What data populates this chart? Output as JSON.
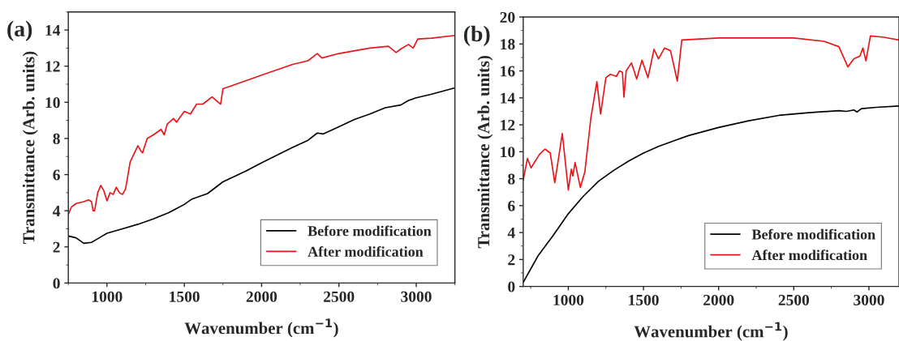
{
  "chart_data": [
    {
      "type": "line",
      "title": "(a)",
      "xlabel": "Wavenumber (cm$^{−1}$)",
      "ylabel": "Transmittance (Arb. units)",
      "xlim": [
        750,
        3250
      ],
      "ylim": [
        0,
        15
      ],
      "xticks": [
        1000,
        1500,
        2000,
        2500,
        3000
      ],
      "yticks": [
        0,
        2,
        4,
        6,
        8,
        10,
        12,
        14
      ],
      "legend": "bottom right",
      "grid": false,
      "series": [
        {
          "name": "Before modification",
          "color": "#000000",
          "x": [
            750,
            800,
            850,
            900,
            950,
            1000,
            1100,
            1200,
            1300,
            1400,
            1500,
            1550,
            1650,
            1750,
            1900,
            2000,
            2200,
            2300,
            2360,
            2400,
            2500,
            2600,
            2700,
            2800,
            2900,
            2950,
            3000,
            3100,
            3250
          ],
          "values": [
            2.6,
            2.5,
            2.2,
            2.25,
            2.5,
            2.75,
            3.0,
            3.25,
            3.55,
            3.9,
            4.35,
            4.65,
            4.95,
            5.6,
            6.2,
            6.65,
            7.5,
            7.9,
            8.3,
            8.25,
            8.65,
            9.05,
            9.35,
            9.7,
            9.85,
            10.1,
            10.25,
            10.45,
            10.8
          ]
        },
        {
          "name": "After modification",
          "color": "#e8161b",
          "x": [
            750,
            770,
            800,
            850,
            880,
            900,
            910,
            920,
            940,
            960,
            980,
            1000,
            1020,
            1040,
            1060,
            1080,
            1100,
            1120,
            1150,
            1200,
            1220,
            1230,
            1260,
            1300,
            1350,
            1370,
            1390,
            1430,
            1450,
            1500,
            1540,
            1580,
            1620,
            1680,
            1720,
            1735,
            1750,
            1800,
            2000,
            2200,
            2300,
            2360,
            2390,
            2500,
            2700,
            2820,
            2870,
            2900,
            2950,
            2980,
            3010,
            3100,
            3250
          ],
          "values": [
            3.8,
            4.2,
            4.4,
            4.5,
            4.6,
            4.5,
            4.0,
            4.0,
            5.0,
            5.4,
            5.1,
            4.55,
            5.0,
            4.9,
            5.3,
            5.0,
            4.9,
            5.2,
            6.7,
            7.6,
            7.3,
            7.2,
            8.0,
            8.2,
            8.5,
            8.2,
            8.8,
            9.1,
            8.9,
            9.5,
            9.35,
            9.9,
            9.9,
            10.3,
            10.0,
            9.9,
            10.75,
            10.9,
            11.5,
            12.1,
            12.3,
            12.7,
            12.45,
            12.7,
            13.0,
            13.1,
            12.75,
            12.95,
            13.2,
            13.0,
            13.5,
            13.55,
            13.7
          ]
        }
      ]
    },
    {
      "type": "line",
      "title": "(b)",
      "xlabel": "Wavenumber (cm$^{−1}$)",
      "ylabel": "Transmittance (Arb. units)",
      "xlim": [
        700,
        3200
      ],
      "ylim": [
        0,
        20
      ],
      "xticks": [
        1000,
        1500,
        2000,
        2500,
        3000
      ],
      "yticks": [
        0,
        2,
        4,
        6,
        8,
        10,
        12,
        14,
        16,
        18,
        20
      ],
      "legend": "bottom right",
      "grid": false,
      "series": [
        {
          "name": "Before modification",
          "color": "#000000",
          "x": [
            700,
            750,
            800,
            900,
            1000,
            1100,
            1200,
            1300,
            1400,
            1500,
            1600,
            1700,
            1800,
            2000,
            2200,
            2400,
            2600,
            2800,
            2850,
            2900,
            2920,
            2950,
            3050,
            3200
          ],
          "values": [
            0.3,
            1.3,
            2.3,
            3.8,
            5.4,
            6.7,
            7.8,
            8.6,
            9.3,
            9.9,
            10.4,
            10.8,
            11.2,
            11.8,
            12.3,
            12.7,
            12.9,
            13.05,
            13.0,
            13.1,
            12.95,
            13.2,
            13.3,
            13.4
          ]
        },
        {
          "name": "After modification",
          "color": "#e8161b",
          "x": [
            700,
            728,
            752,
            808,
            845,
            880,
            910,
            960,
            1000,
            1020,
            1030,
            1045,
            1080,
            1110,
            1150,
            1190,
            1215,
            1250,
            1280,
            1320,
            1340,
            1360,
            1370,
            1385,
            1420,
            1455,
            1490,
            1530,
            1570,
            1600,
            1640,
            1680,
            1725,
            1755,
            2000,
            2500,
            2700,
            2800,
            2860,
            2900,
            2940,
            2960,
            2980,
            3010,
            3100,
            3200
          ],
          "values": [
            7.9,
            9.5,
            8.8,
            9.8,
            10.2,
            9.9,
            7.7,
            11.35,
            7.15,
            8.7,
            8.2,
            9.2,
            7.35,
            8.5,
            12.5,
            15.2,
            12.8,
            15.5,
            15.75,
            15.6,
            16.0,
            15.9,
            14.05,
            16.0,
            16.6,
            15.4,
            16.8,
            15.5,
            17.6,
            16.9,
            17.7,
            17.5,
            15.25,
            18.3,
            18.45,
            18.45,
            18.2,
            17.8,
            16.3,
            16.9,
            17.1,
            17.7,
            16.75,
            18.6,
            18.5,
            18.3
          ]
        }
      ]
    }
  ]
}
